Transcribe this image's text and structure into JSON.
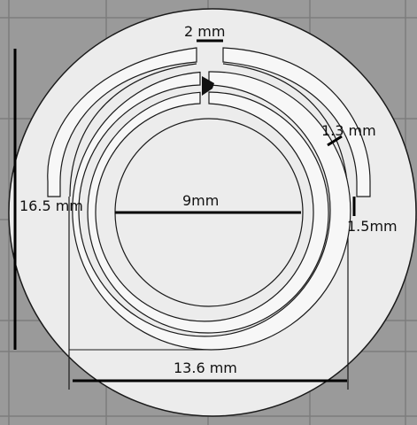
{
  "diagram": {
    "colors": {
      "background_grid": "#9a9a9a",
      "grid_lines": "#7c7c7c",
      "substrate": "#ececec",
      "ring_fill": "#f7f7f7",
      "outline": "#1a1a1a",
      "dimension_line": "#000000"
    },
    "labels": {
      "gap_width": "2 mm",
      "outer_radius_dim": "16.5 mm",
      "inner_diameter": "9mm",
      "ring_width": "1.3 mm",
      "slot_width": "1.5mm",
      "span_width": "13.6 mm"
    }
  }
}
